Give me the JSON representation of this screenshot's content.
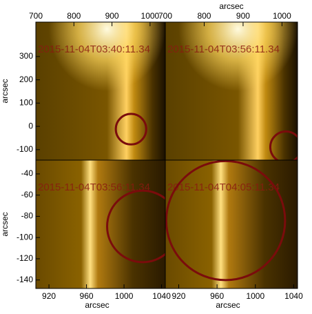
{
  "chart_data": [
    {
      "type": "image",
      "title": "2015-11-04T03:40:11.34",
      "xlabel": "arcsec",
      "ylabel": "arcsec",
      "xlim": [
        700,
        1040
      ],
      "xticks": [
        700,
        800,
        900,
        1000
      ],
      "ylim": [
        -145,
        448
      ],
      "yticks": [
        -100,
        0,
        100,
        200,
        300
      ],
      "circle": {
        "x": 950,
        "y": -12,
        "r": 40,
        "color": "#7a0c0c"
      }
    },
    {
      "type": "image",
      "title": "2015-11-04T03:56:11.34",
      "xlabel": "arcsec",
      "xlim": [
        700,
        1040
      ],
      "xticks": [
        700,
        800,
        900,
        1000
      ],
      "ylim": [
        -145,
        448
      ],
      "circle": {
        "x": 1010,
        "y": -89,
        "r": 40,
        "color": "#7a0c0c"
      }
    },
    {
      "type": "image",
      "title": "2015-11-04T03:56:11.34",
      "xlabel": "arcsec",
      "ylabel": "arcsec",
      "xlim": [
        906,
        1044
      ],
      "xticks": [
        920,
        960,
        1000,
        1040
      ],
      "ylim": [
        -148,
        -27
      ],
      "yticks": [
        -140,
        -120,
        -100,
        -80,
        -60,
        -40
      ],
      "circle": {
        "x": 1020,
        "y": -89.5,
        "r": 38,
        "color": "#7a0c0c"
      }
    },
    {
      "type": "image",
      "title": "2015-11-04T04:05:11.34",
      "xlabel": "arcsec",
      "xlim": [
        906,
        1044
      ],
      "xticks": [
        920,
        960,
        1000,
        1040
      ],
      "ylim": [
        -148,
        -27
      ],
      "circle": {
        "x": 969,
        "y": -84,
        "r": 62,
        "color": "#7a0c0c"
      }
    }
  ]
}
